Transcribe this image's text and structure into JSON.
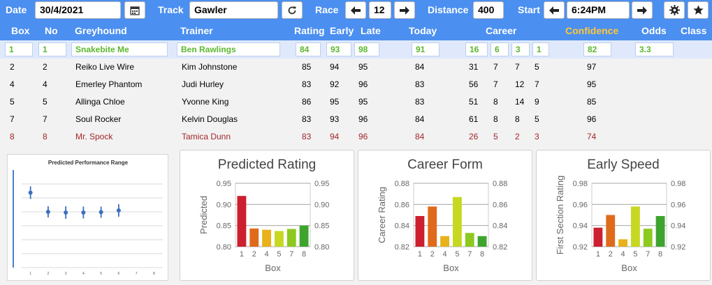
{
  "toolbar": {
    "date_label": "Date",
    "date_value": "30/4/2021",
    "track_label": "Track",
    "track_value": "Gawler",
    "race_label": "Race",
    "race_value": "12",
    "distance_label": "Distance",
    "distance_value": "400",
    "start_label": "Start",
    "start_value": "6:24PM"
  },
  "columns": {
    "box": "Box",
    "no": "No",
    "greyhound": "Greyhound",
    "trainer": "Trainer",
    "rating": "Rating",
    "early": "Early",
    "late": "Late",
    "today": "Today",
    "career": "Career",
    "confidence": "Confidence",
    "odds": "Odds",
    "class": "Class"
  },
  "selected": {
    "box": "1",
    "no": "1",
    "greyhound": "Snakebite Me",
    "trainer": "Ben Rawlings",
    "rating": "84",
    "early": "93",
    "late": "98",
    "today": "91",
    "career": [
      "16",
      "6",
      "3",
      "1"
    ],
    "confidence": "82",
    "odds": "3.3"
  },
  "rows": [
    {
      "box": "2",
      "no": "2",
      "greyhound": "Reiko Live Wire",
      "trainer": "Kim Johnstone",
      "rating": "85",
      "early": "94",
      "late": "95",
      "today": "84",
      "c1": "31",
      "c2": "7",
      "c3": "7",
      "c4": "5",
      "confidence": "97",
      "red": false
    },
    {
      "box": "4",
      "no": "4",
      "greyhound": "Emerley Phantom",
      "trainer": "Judi Hurley",
      "rating": "83",
      "early": "92",
      "late": "96",
      "today": "83",
      "c1": "56",
      "c2": "7",
      "c3": "12",
      "c4": "7",
      "confidence": "95",
      "red": false
    },
    {
      "box": "5",
      "no": "5",
      "greyhound": "Allinga Chloe",
      "trainer": "Yvonne King",
      "rating": "86",
      "early": "95",
      "late": "95",
      "today": "83",
      "c1": "51",
      "c2": "8",
      "c3": "14",
      "c4": "9",
      "confidence": "85",
      "red": false
    },
    {
      "box": "7",
      "no": "7",
      "greyhound": "Soul Rocker",
      "trainer": "Kelvin Douglas",
      "rating": "83",
      "early": "93",
      "late": "96",
      "today": "84",
      "c1": "61",
      "c2": "8",
      "c3": "8",
      "c4": "5",
      "confidence": "96",
      "red": false
    },
    {
      "box": "8",
      "no": "8",
      "greyhound": "Mr. Spock",
      "trainer": "Tamica Dunn",
      "rating": "83",
      "early": "94",
      "late": "96",
      "today": "84",
      "c1": "26",
      "c2": "5",
      "c3": "2",
      "c4": "3",
      "confidence": "74",
      "red": true
    }
  ],
  "colors": {
    "header_bg": "#4b8ff0",
    "selected_text": "#5ab82d",
    "confidence_header": "#ffc83a",
    "alert_row": "#a1262c"
  },
  "chart_data": [
    {
      "type": "scatter",
      "title": "Predicted Performance Range",
      "x": [
        1,
        2,
        3,
        4,
        5,
        6
      ],
      "y": [
        0.915,
        0.86,
        0.858,
        0.858,
        0.859,
        0.864
      ],
      "err": [
        0.018,
        0.016,
        0.018,
        0.017,
        0.016,
        0.018
      ],
      "xticks": [
        "1",
        "2",
        "3",
        "4",
        "5",
        "6",
        "7",
        "8"
      ],
      "ylim": [
        0.7,
        0.98
      ]
    },
    {
      "type": "bar",
      "title": "Predicted Rating",
      "xlabel": "Box",
      "ylabel": "Predicted",
      "categories": [
        "1",
        "2",
        "4",
        "5",
        "7",
        "8"
      ],
      "values": [
        0.92,
        0.843,
        0.84,
        0.837,
        0.842,
        0.85
      ],
      "ylim": [
        0.8,
        0.95
      ],
      "yticks": [
        "0.80",
        "0.85",
        "0.90",
        "0.95"
      ],
      "colors": [
        "#cc1f2f",
        "#e06a1c",
        "#e9b11a",
        "#c6d822",
        "#8ec920",
        "#3ea42e"
      ]
    },
    {
      "type": "bar",
      "title": "Career Form",
      "xlabel": "Box",
      "ylabel": "Career Rating",
      "categories": [
        "1",
        "2",
        "4",
        "5",
        "7",
        "8"
      ],
      "values": [
        0.849,
        0.858,
        0.83,
        0.867,
        0.833,
        0.83
      ],
      "ylim": [
        0.82,
        0.88
      ],
      "yticks": [
        "0.82",
        "0.84",
        "0.86",
        "0.88"
      ],
      "colors": [
        "#cc1f2f",
        "#e06a1c",
        "#e9b11a",
        "#c6d822",
        "#8ec920",
        "#3ea42e"
      ]
    },
    {
      "type": "bar",
      "title": "Early Speed",
      "xlabel": "Box",
      "ylabel": "First Section Rating",
      "categories": [
        "1",
        "2",
        "4",
        "5",
        "7",
        "8"
      ],
      "values": [
        0.938,
        0.95,
        0.927,
        0.958,
        0.937,
        0.949
      ],
      "ylim": [
        0.92,
        0.98
      ],
      "yticks": [
        "0.92",
        "0.94",
        "0.96",
        "0.98"
      ],
      "colors": [
        "#cc1f2f",
        "#e06a1c",
        "#e9b11a",
        "#c6d822",
        "#8ec920",
        "#3ea42e"
      ]
    }
  ]
}
